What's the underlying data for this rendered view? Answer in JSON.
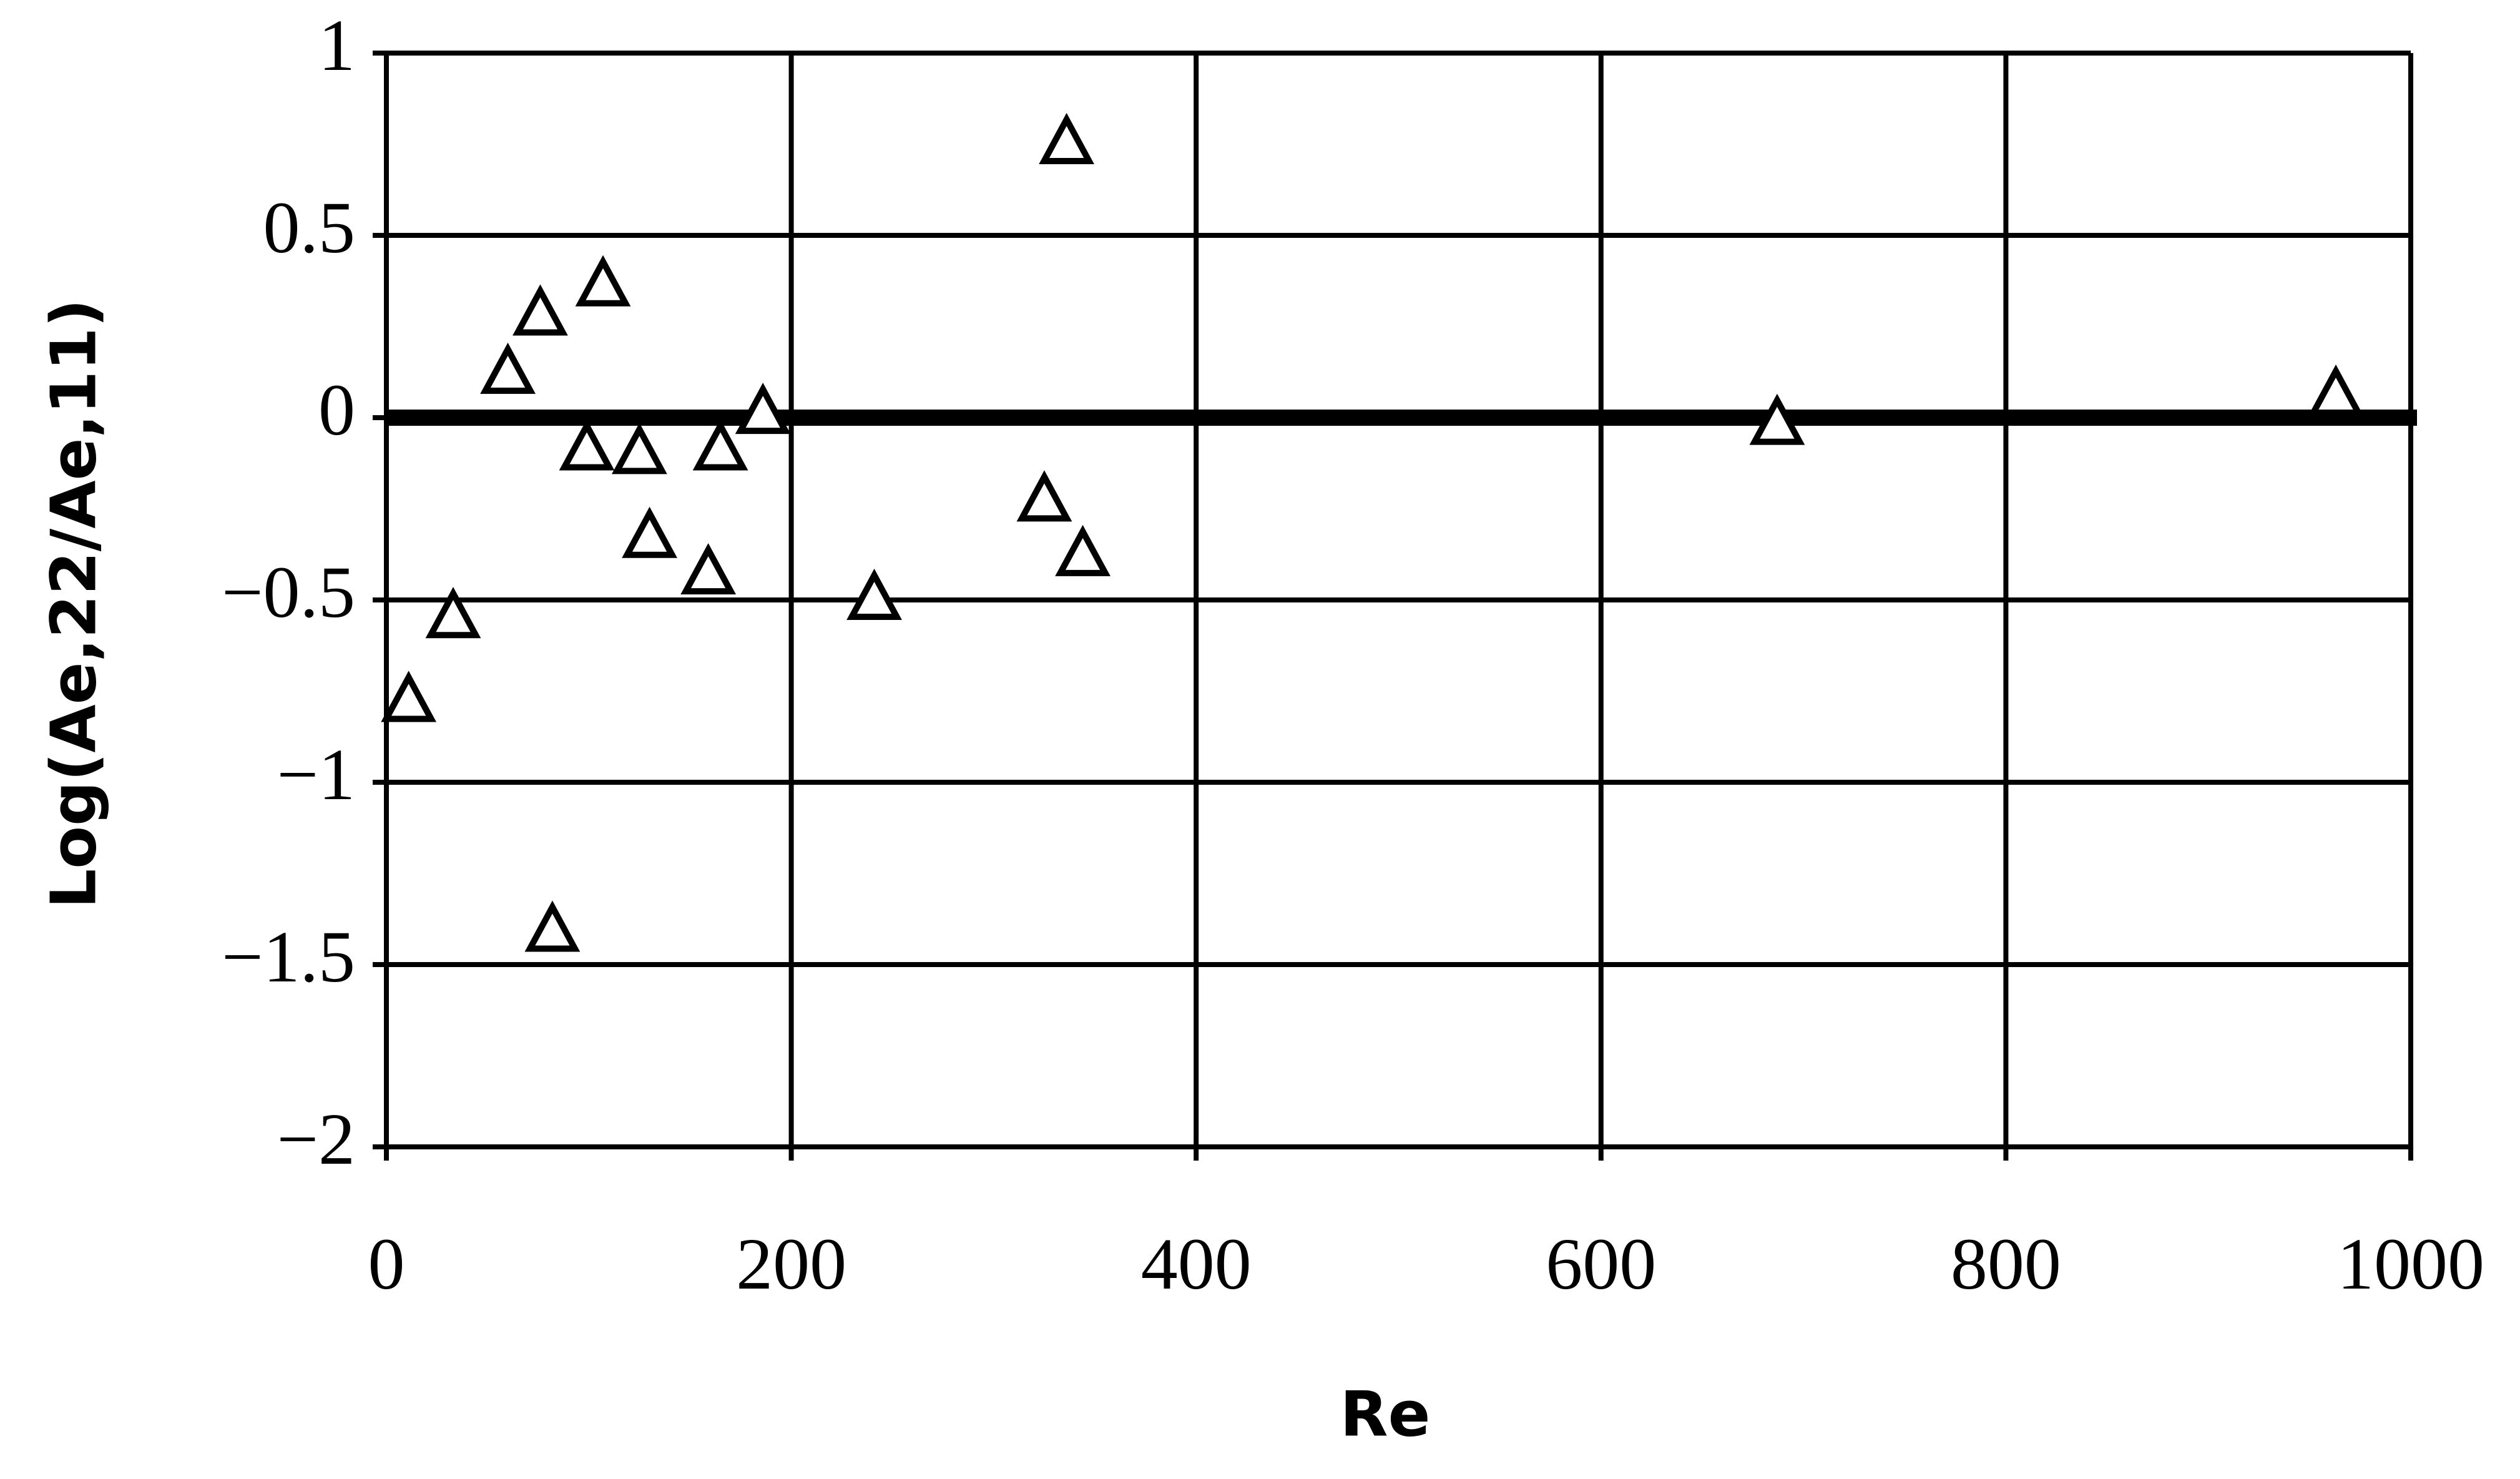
{
  "chart_data": {
    "type": "scatter",
    "x_label": "Re",
    "y_label": "Log(Ae,22/Ae,11)",
    "x": [
      11,
      33,
      60,
      76,
      82,
      99,
      107,
      125,
      130,
      159,
      165,
      186,
      241,
      325,
      336,
      344,
      687,
      963
    ],
    "values": [
      -0.78,
      -0.55,
      0.12,
      0.28,
      -1.41,
      -0.09,
      0.36,
      -0.1,
      -0.33,
      -0.43,
      -0.09,
      0.01,
      -0.5,
      -0.23,
      0.75,
      -0.38,
      -0.02,
      0.06
    ],
    "marker": "triangle-open",
    "color": "#000000",
    "xlim": [
      0,
      1000
    ],
    "xticks": [
      0,
      200,
      400,
      600,
      800,
      1000
    ],
    "ylim": [
      -2,
      1
    ],
    "yticks": [
      {
        "value": -2,
        "label": "−2"
      },
      {
        "value": -1.5,
        "label": "−1.5"
      },
      {
        "value": -1,
        "label": "−1"
      },
      {
        "value": -0.5,
        "label": "−0.5"
      },
      0,
      0.5,
      1
    ],
    "grid": true,
    "reference_line": 0
  }
}
